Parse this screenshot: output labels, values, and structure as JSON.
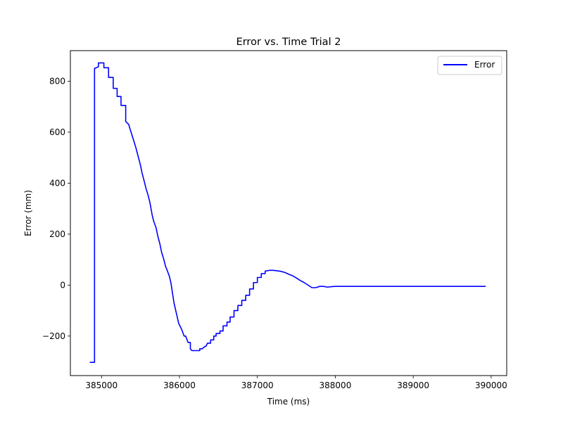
{
  "chart_data": {
    "type": "line",
    "title": "Error vs. Time Trial 2",
    "xlabel": "Time (ms)",
    "ylabel": "Error (mm)",
    "xlim": [
      384600,
      390200
    ],
    "ylim": [
      -355,
      920
    ],
    "xticks": [
      385000,
      386000,
      387000,
      388000,
      389000,
      390000
    ],
    "xtick_labels": [
      "385000",
      "386000",
      "387000",
      "388000",
      "389000",
      "390000"
    ],
    "yticks": [
      -200,
      0,
      200,
      400,
      600,
      800
    ],
    "ytick_labels": [
      "−200",
      "0",
      "200",
      "400",
      "600",
      "800"
    ],
    "grid": false,
    "legend": {
      "position": "top-right",
      "entries": [
        "Error"
      ]
    },
    "series": [
      {
        "name": "Error",
        "color": "#0000ff",
        "x": [
          384850,
          384910,
          384910,
          384920,
          384960,
          384960,
          385030,
          385030,
          385090,
          385090,
          385150,
          385150,
          385200,
          385200,
          385250,
          385250,
          385310,
          385310,
          385350,
          385360,
          385410,
          385440,
          385470,
          385500,
          385520,
          385550,
          385570,
          385600,
          385620,
          385650,
          385670,
          385700,
          385720,
          385750,
          385770,
          385800,
          385820,
          385840,
          385870,
          385890,
          385910,
          385930,
          385960,
          385990,
          386030,
          386060,
          386080,
          386110,
          386140,
          386140,
          386160,
          386260,
          386260,
          386290,
          386310,
          386310,
          386330,
          386340,
          386360,
          386400,
          386400,
          386440,
          386440,
          386470,
          386470,
          386520,
          386520,
          386560,
          386560,
          386610,
          386610,
          386650,
          386650,
          386700,
          386700,
          386750,
          386750,
          386800,
          386800,
          386850,
          386850,
          386900,
          386900,
          386950,
          386950,
          387000,
          387000,
          387050,
          387050,
          387100,
          387100,
          387160,
          387200,
          387260,
          387300,
          387350,
          387400,
          387450,
          387500,
          387550,
          387600,
          387650,
          387700,
          387750,
          387800,
          387850,
          387900,
          387950,
          388000,
          388050,
          388100,
          388200,
          388300,
          388400,
          388500,
          388600,
          388700,
          388800,
          388900,
          389000,
          389100,
          389200,
          389300,
          389400,
          389500,
          389600,
          389700,
          389800,
          389860,
          389930
        ],
        "y": [
          -303,
          -303,
          851,
          851,
          857,
          872,
          872,
          853,
          853,
          815,
          815,
          772,
          772,
          740,
          740,
          705,
          705,
          642,
          630,
          618,
          570,
          540,
          505,
          470,
          440,
          405,
          380,
          350,
          325,
          275,
          250,
          225,
          195,
          160,
          130,
          100,
          75,
          60,
          35,
          10,
          -30,
          -70,
          -110,
          -150,
          -175,
          -200,
          -200,
          -225,
          -225,
          -250,
          -257,
          -257,
          -250,
          -250,
          -245,
          -245,
          -240,
          -240,
          -228,
          -228,
          -215,
          -215,
          -200,
          -200,
          -190,
          -190,
          -180,
          -180,
          -160,
          -160,
          -145,
          -145,
          -125,
          -125,
          -100,
          -100,
          -80,
          -80,
          -60,
          -60,
          -40,
          -40,
          -15,
          -15,
          10,
          10,
          30,
          30,
          45,
          45,
          55,
          58,
          58,
          56,
          54,
          50,
          43,
          37,
          28,
          18,
          10,
          0,
          -10,
          -10,
          -5,
          -5,
          -8,
          -6,
          -5,
          -5,
          -5,
          -5,
          -5,
          -5,
          -5,
          -5,
          -5,
          -5,
          -5,
          -5,
          -5,
          -5,
          -5,
          -5,
          -5,
          -5,
          -5,
          -5,
          -5,
          -5
        ]
      }
    ]
  }
}
